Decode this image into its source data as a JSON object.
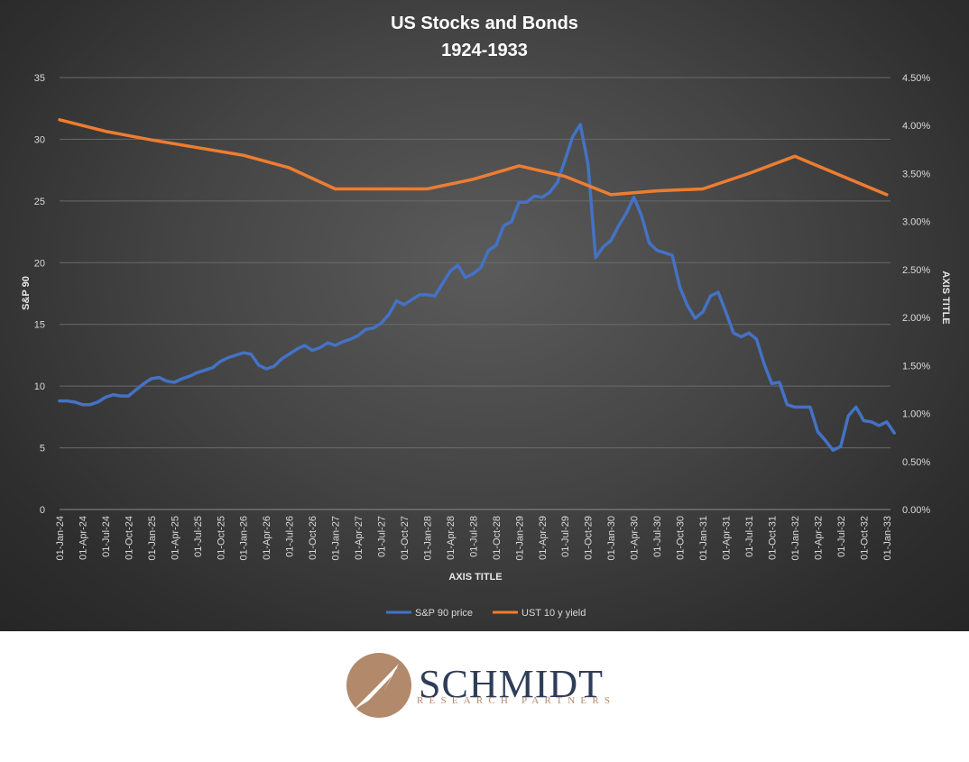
{
  "chart_data": {
    "type": "line",
    "title": "US Stocks and Bonds",
    "subtitle": "1924-1933",
    "xlabel": "AXIS TITLE",
    "ylabel_left": "S&P 90",
    "ylabel_right": "AXIS TITLE",
    "ylim_left": [
      0,
      35
    ],
    "ylim_right": [
      0.0,
      4.5
    ],
    "y_ticks_left": [
      "0",
      "5",
      "10",
      "15",
      "20",
      "25",
      "30",
      "35"
    ],
    "y_ticks_right": [
      "0.00%",
      "0.50%",
      "1.00%",
      "1.50%",
      "2.00%",
      "2.50%",
      "3.00%",
      "3.50%",
      "4.00%",
      "4.50%"
    ],
    "x_tick_labels": [
      "01-Jan-24",
      "01-Apr-24",
      "01-Jul-24",
      "01-Oct-24",
      "01-Jan-25",
      "01-Apr-25",
      "01-Jul-25",
      "01-Oct-25",
      "01-Jan-26",
      "01-Apr-26",
      "01-Jul-26",
      "01-Oct-26",
      "01-Jan-27",
      "01-Apr-27",
      "01-Jul-27",
      "01-Oct-27",
      "01-Jan-28",
      "01-Apr-28",
      "01-Jul-28",
      "01-Oct-28",
      "01-Jan-29",
      "01-Apr-29",
      "01-Jul-29",
      "01-Oct-29",
      "01-Jan-30",
      "01-Apr-30",
      "01-Jul-30",
      "01-Oct-30",
      "01-Jan-31",
      "01-Apr-31",
      "01-Jul-31",
      "01-Oct-31",
      "01-Jan-32",
      "01-Apr-32",
      "01-Jul-32",
      "01-Oct-32",
      "01-Jan-33"
    ],
    "grid": true,
    "legend_position": "bottom",
    "series": [
      {
        "name": "S&P 90 price",
        "axis": "left",
        "color": "#4472c4",
        "points": [
          [
            "1924-01",
            8.8
          ],
          [
            "1924-02",
            8.8
          ],
          [
            "1924-03",
            8.7
          ],
          [
            "1924-04",
            8.5
          ],
          [
            "1924-05",
            8.5
          ],
          [
            "1924-06",
            8.7
          ],
          [
            "1924-07",
            9.1
          ],
          [
            "1924-08",
            9.3
          ],
          [
            "1924-09",
            9.2
          ],
          [
            "1924-10",
            9.2
          ],
          [
            "1924-11",
            9.7
          ],
          [
            "1924-12",
            10.2
          ],
          [
            "1925-01",
            10.6
          ],
          [
            "1925-02",
            10.7
          ],
          [
            "1925-03",
            10.4
          ],
          [
            "1925-04",
            10.3
          ],
          [
            "1925-05",
            10.6
          ],
          [
            "1925-06",
            10.8
          ],
          [
            "1925-07",
            11.1
          ],
          [
            "1925-08",
            11.3
          ],
          [
            "1925-09",
            11.5
          ],
          [
            "1925-10",
            12.0
          ],
          [
            "1925-11",
            12.3
          ],
          [
            "1925-12",
            12.5
          ],
          [
            "1926-01",
            12.7
          ],
          [
            "1926-02",
            12.6
          ],
          [
            "1926-03",
            11.7
          ],
          [
            "1926-04",
            11.4
          ],
          [
            "1926-05",
            11.6
          ],
          [
            "1926-06",
            12.2
          ],
          [
            "1926-07",
            12.6
          ],
          [
            "1926-08",
            13.0
          ],
          [
            "1926-09",
            13.3
          ],
          [
            "1926-10",
            12.9
          ],
          [
            "1926-11",
            13.1
          ],
          [
            "1926-12",
            13.5
          ],
          [
            "1927-01",
            13.3
          ],
          [
            "1927-02",
            13.6
          ],
          [
            "1927-03",
            13.8
          ],
          [
            "1927-04",
            14.1
          ],
          [
            "1927-05",
            14.6
          ],
          [
            "1927-06",
            14.7
          ],
          [
            "1927-07",
            15.1
          ],
          [
            "1927-08",
            15.8
          ],
          [
            "1927-09",
            16.9
          ],
          [
            "1927-10",
            16.6
          ],
          [
            "1927-11",
            17.0
          ],
          [
            "1927-12",
            17.4
          ],
          [
            "1928-01",
            17.4
          ],
          [
            "1928-02",
            17.3
          ],
          [
            "1928-03",
            18.3
          ],
          [
            "1928-04",
            19.3
          ],
          [
            "1928-05",
            19.8
          ],
          [
            "1928-06",
            18.8
          ],
          [
            "1928-07",
            19.1
          ],
          [
            "1928-08",
            19.6
          ],
          [
            "1928-09",
            21.0
          ],
          [
            "1928-10",
            21.4
          ],
          [
            "1928-11",
            23.0
          ],
          [
            "1928-12",
            23.3
          ],
          [
            "1929-01",
            24.9
          ],
          [
            "1929-02",
            24.9
          ],
          [
            "1929-03",
            25.4
          ],
          [
            "1929-04",
            25.3
          ],
          [
            "1929-05",
            25.7
          ],
          [
            "1929-06",
            26.5
          ],
          [
            "1929-07",
            28.3
          ],
          [
            "1929-08",
            30.2
          ],
          [
            "1929-09",
            31.2
          ],
          [
            "1929-10",
            28.0
          ],
          [
            "1929-11",
            20.4
          ],
          [
            "1929-12",
            21.3
          ],
          [
            "1930-01",
            21.8
          ],
          [
            "1930-02",
            23.0
          ],
          [
            "1930-03",
            24.0
          ],
          [
            "1930-04",
            25.3
          ],
          [
            "1930-05",
            23.8
          ],
          [
            "1930-06",
            21.6
          ],
          [
            "1930-07",
            21.0
          ],
          [
            "1930-08",
            20.8
          ],
          [
            "1930-09",
            20.6
          ],
          [
            "1930-10",
            18.0
          ],
          [
            "1930-11",
            16.5
          ],
          [
            "1930-12",
            15.5
          ],
          [
            "1931-01",
            16.0
          ],
          [
            "1931-02",
            17.3
          ],
          [
            "1931-03",
            17.6
          ],
          [
            "1931-04",
            16.0
          ],
          [
            "1931-05",
            14.3
          ],
          [
            "1931-06",
            14.0
          ],
          [
            "1931-07",
            14.3
          ],
          [
            "1931-08",
            13.8
          ],
          [
            "1931-09",
            11.8
          ],
          [
            "1931-10",
            10.2
          ],
          [
            "1931-11",
            10.3
          ],
          [
            "1931-12",
            8.5
          ],
          [
            "1932-01",
            8.3
          ],
          [
            "1932-02",
            8.3
          ],
          [
            "1932-03",
            8.3
          ],
          [
            "1932-04",
            6.3
          ],
          [
            "1932-05",
            5.6
          ],
          [
            "1932-06",
            4.8
          ],
          [
            "1932-07",
            5.1
          ],
          [
            "1932-08",
            7.6
          ],
          [
            "1932-09",
            8.3
          ],
          [
            "1932-10",
            7.2
          ],
          [
            "1932-11",
            7.1
          ],
          [
            "1932-12",
            6.8
          ],
          [
            "1933-01",
            7.1
          ],
          [
            "1933-02",
            6.2
          ]
        ]
      },
      {
        "name": "UST 10 y yield",
        "axis": "right",
        "color": "#ed7d31",
        "points": [
          [
            "1924-01",
            4.06
          ],
          [
            "1924-07",
            3.94
          ],
          [
            "1925-01",
            3.85
          ],
          [
            "1925-07",
            3.77
          ],
          [
            "1926-01",
            3.69
          ],
          [
            "1926-07",
            3.56
          ],
          [
            "1927-01",
            3.34
          ],
          [
            "1927-07",
            3.34
          ],
          [
            "1928-01",
            3.34
          ],
          [
            "1928-07",
            3.44
          ],
          [
            "1929-01",
            3.58
          ],
          [
            "1929-07",
            3.47
          ],
          [
            "1930-01",
            3.28
          ],
          [
            "1930-07",
            3.32
          ],
          [
            "1931-01",
            3.34
          ],
          [
            "1931-07",
            3.5
          ],
          [
            "1932-01",
            3.68
          ],
          [
            "1932-07",
            3.48
          ],
          [
            "1933-01",
            3.28
          ]
        ]
      }
    ]
  },
  "logo": {
    "name": "SCHMIDT",
    "tagline": "RESEARCH PARTNERS",
    "colors": {
      "navy": "#2f3d57",
      "bronze": "#b2896b"
    }
  }
}
